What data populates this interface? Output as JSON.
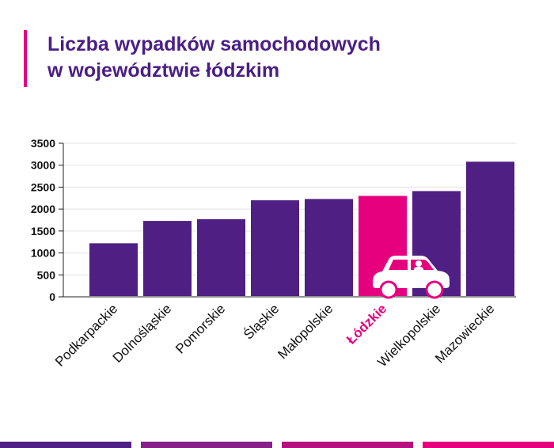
{
  "chart_data": {
    "type": "bar",
    "title_line1": "Liczba wypadków samochodowych",
    "title_line2": "w województwie łódzkim",
    "categories": [
      "Podkarpackie",
      "Dolnośląskie",
      "Pomorskie",
      "Śląskie",
      "Małopolskie",
      "Łódzkie",
      "Wielkopolskie",
      "Mazowieckie"
    ],
    "values": [
      1220,
      1730,
      1770,
      2200,
      2230,
      2300,
      2410,
      3080
    ],
    "highlight": "Łódzkie",
    "yticks": [
      "0",
      "500",
      "1000",
      "1500",
      "2000",
      "2500",
      "3000",
      "3500"
    ],
    "ylim": [
      0,
      3500
    ],
    "grid": true,
    "xlabel": "",
    "ylabel": "",
    "colors": {
      "bar": "#4f1f83",
      "highlight": "#e6007e",
      "title": "#4b1e86",
      "accent": "#e6007e"
    },
    "icon": "car-icon"
  },
  "footer": {
    "strip_colors": [
      "#4f1f83",
      "#86218a",
      "#b5117f",
      "#e6007e"
    ]
  }
}
